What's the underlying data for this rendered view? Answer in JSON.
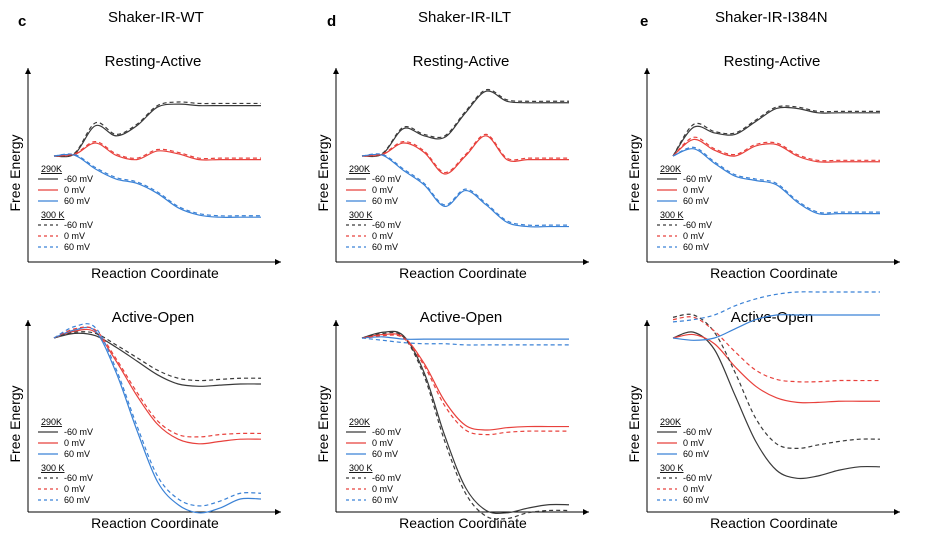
{
  "columns": [
    {
      "letter": "c",
      "title": "Shaker-IR-WT"
    },
    {
      "letter": "d",
      "title": "Shaker-IR-ILT"
    },
    {
      "letter": "e",
      "title": "Shaker-IR-I384N"
    }
  ],
  "legend": {
    "group_290": "290K",
    "group_300": "300 K",
    "labels": [
      "-60 mV",
      "0 mV",
      "60 mV"
    ]
  },
  "colors": {
    "-60 mV": "#3a3a3a",
    "0 mV": "#e8413c",
    "60 mV": "#3b82d6"
  },
  "chart_data": [
    {
      "type": "line",
      "panel": "c",
      "title": "Resting-Active",
      "xlabel": "Reaction Coordinate",
      "ylabel": "Free Energy",
      "x": [
        0,
        0.1,
        0.2,
        0.3,
        0.4,
        0.5,
        0.6,
        0.7,
        0.8,
        0.9,
        1.0
      ],
      "series": [
        {
          "name": "-60 mV",
          "temperature": "290K",
          "style": "solid",
          "values": [
            0,
            0.03,
            0.42,
            0.28,
            0.42,
            0.68,
            0.72,
            0.7,
            0.7,
            0.7,
            0.7
          ]
        },
        {
          "name": "0 mV",
          "temperature": "290K",
          "style": "solid",
          "values": [
            0,
            0.02,
            0.18,
            0.01,
            -0.05,
            0.07,
            0.03,
            -0.05,
            -0.05,
            -0.05,
            -0.05
          ]
        },
        {
          "name": "60 mV",
          "temperature": "290K",
          "style": "solid",
          "values": [
            0,
            0.01,
            -0.18,
            -0.32,
            -0.38,
            -0.52,
            -0.72,
            -0.82,
            -0.85,
            -0.85,
            -0.85
          ]
        },
        {
          "name": "-60 mV",
          "temperature": "300 K",
          "style": "dashed",
          "values": [
            0,
            0.04,
            0.46,
            0.3,
            0.44,
            0.7,
            0.75,
            0.73,
            0.73,
            0.73,
            0.73
          ]
        },
        {
          "name": "0 mV",
          "temperature": "300 K",
          "style": "dashed",
          "values": [
            0,
            0.03,
            0.2,
            0.03,
            -0.03,
            0.09,
            0.05,
            -0.03,
            -0.03,
            -0.03,
            -0.03
          ]
        },
        {
          "name": "60 mV",
          "temperature": "300 K",
          "style": "dashed",
          "values": [
            0,
            0.02,
            -0.16,
            -0.3,
            -0.36,
            -0.5,
            -0.7,
            -0.8,
            -0.83,
            -0.83,
            -0.83
          ]
        }
      ]
    },
    {
      "type": "line",
      "panel": "d",
      "title": "Resting-Active",
      "xlabel": "Reaction Coordinate",
      "ylabel": "Free Energy",
      "x": [
        0,
        0.1,
        0.2,
        0.3,
        0.4,
        0.5,
        0.6,
        0.7,
        0.8,
        0.9,
        1.0
      ],
      "series": [
        {
          "name": "-60 mV",
          "temperature": "290K",
          "style": "solid",
          "values": [
            0,
            0.03,
            0.38,
            0.28,
            0.26,
            0.6,
            0.9,
            0.76,
            0.74,
            0.74,
            0.74
          ]
        },
        {
          "name": "0 mV",
          "temperature": "290K",
          "style": "solid",
          "values": [
            0,
            0.02,
            0.18,
            0.05,
            -0.25,
            0.0,
            0.28,
            -0.05,
            -0.05,
            -0.05,
            -0.05
          ]
        },
        {
          "name": "60 mV",
          "temperature": "290K",
          "style": "solid",
          "values": [
            0,
            0.01,
            -0.2,
            -0.4,
            -0.7,
            -0.48,
            -0.68,
            -0.92,
            -0.98,
            -0.98,
            -0.98
          ]
        },
        {
          "name": "-60 mV",
          "temperature": "300 K",
          "style": "dashed",
          "values": [
            0,
            0.04,
            0.4,
            0.3,
            0.28,
            0.62,
            0.92,
            0.78,
            0.76,
            0.76,
            0.76
          ]
        },
        {
          "name": "0 mV",
          "temperature": "300 K",
          "style": "dashed",
          "values": [
            0,
            0.03,
            0.2,
            0.07,
            -0.23,
            0.02,
            0.3,
            -0.03,
            -0.03,
            -0.03,
            -0.03
          ]
        },
        {
          "name": "60 mV",
          "temperature": "300 K",
          "style": "dashed",
          "values": [
            0,
            0.02,
            -0.18,
            -0.38,
            -0.68,
            -0.46,
            -0.66,
            -0.9,
            -0.96,
            -0.96,
            -0.96
          ]
        }
      ]
    },
    {
      "type": "line",
      "panel": "e",
      "title": "Resting-Active",
      "xlabel": "Reaction Coordinate",
      "ylabel": "Free Energy",
      "x": [
        0,
        0.1,
        0.2,
        0.3,
        0.4,
        0.5,
        0.6,
        0.7,
        0.8,
        0.9,
        1.0
      ],
      "series": [
        {
          "name": "-60 mV",
          "temperature": "290K",
          "style": "solid",
          "values": [
            0,
            0.4,
            0.32,
            0.3,
            0.48,
            0.66,
            0.66,
            0.6,
            0.6,
            0.6,
            0.6
          ]
        },
        {
          "name": "0 mV",
          "temperature": "290K",
          "style": "solid",
          "values": [
            0,
            0.23,
            0.08,
            0.0,
            0.14,
            0.16,
            0.0,
            -0.08,
            -0.08,
            -0.08,
            -0.08
          ]
        },
        {
          "name": "60 mV",
          "temperature": "290K",
          "style": "solid",
          "values": [
            0,
            0.1,
            -0.1,
            -0.28,
            -0.34,
            -0.4,
            -0.64,
            -0.8,
            -0.8,
            -0.8,
            -0.8
          ]
        },
        {
          "name": "-60 mV",
          "temperature": "300 K",
          "style": "dashed",
          "values": [
            0,
            0.44,
            0.34,
            0.32,
            0.5,
            0.68,
            0.68,
            0.62,
            0.62,
            0.62,
            0.62
          ]
        },
        {
          "name": "0 mV",
          "temperature": "300 K",
          "style": "dashed",
          "values": [
            0,
            0.26,
            0.1,
            0.02,
            0.16,
            0.18,
            0.02,
            -0.06,
            -0.06,
            -0.06,
            -0.06
          ]
        },
        {
          "name": "60 mV",
          "temperature": "300 K",
          "style": "dashed",
          "values": [
            0,
            0.12,
            -0.08,
            -0.26,
            -0.32,
            -0.38,
            -0.62,
            -0.78,
            -0.78,
            -0.78,
            -0.78
          ]
        }
      ]
    },
    {
      "type": "line",
      "panel": "c",
      "title": "Active-Open",
      "xlabel": "Reaction Coordinate",
      "ylabel": "Free Energy",
      "x": [
        0,
        0.1,
        0.2,
        0.3,
        0.4,
        0.5,
        0.6,
        0.7,
        0.8,
        0.9,
        1.0
      ],
      "series": [
        {
          "name": "-60 mV",
          "temperature": "290K",
          "style": "solid",
          "values": [
            0,
            0.04,
            0.02,
            -0.08,
            -0.2,
            -0.32,
            -0.4,
            -0.42,
            -0.41,
            -0.4,
            -0.4
          ]
        },
        {
          "name": "0 mV",
          "temperature": "290K",
          "style": "solid",
          "values": [
            0,
            0.06,
            0.05,
            -0.2,
            -0.5,
            -0.75,
            -0.88,
            -0.92,
            -0.9,
            -0.88,
            -0.88
          ]
        },
        {
          "name": "60 mV",
          "temperature": "290K",
          "style": "solid",
          "values": [
            0,
            0.07,
            0.06,
            -0.3,
            -0.8,
            -1.25,
            -1.45,
            -1.52,
            -1.48,
            -1.4,
            -1.4
          ]
        },
        {
          "name": "-60 mV",
          "temperature": "300 K",
          "style": "dashed",
          "values": [
            0,
            0.05,
            0.04,
            -0.06,
            -0.17,
            -0.28,
            -0.35,
            -0.37,
            -0.36,
            -0.35,
            -0.35
          ]
        },
        {
          "name": "0 mV",
          "temperature": "300 K",
          "style": "dashed",
          "values": [
            0,
            0.08,
            0.07,
            -0.18,
            -0.47,
            -0.72,
            -0.84,
            -0.86,
            -0.84,
            -0.83,
            -0.83
          ]
        },
        {
          "name": "60 mV",
          "temperature": "300 K",
          "style": "dashed",
          "values": [
            0,
            0.1,
            0.09,
            -0.27,
            -0.76,
            -1.2,
            -1.4,
            -1.46,
            -1.42,
            -1.35,
            -1.35
          ]
        }
      ]
    },
    {
      "type": "line",
      "panel": "d",
      "title": "Active-Open",
      "xlabel": "Reaction Coordinate",
      "ylabel": "Free Energy",
      "x": [
        0,
        0.1,
        0.2,
        0.3,
        0.4,
        0.5,
        0.6,
        0.7,
        0.8,
        0.9,
        1.0
      ],
      "series": [
        {
          "name": "-60 mV",
          "temperature": "290K",
          "style": "solid",
          "values": [
            0,
            0.05,
            0.02,
            -0.3,
            -0.85,
            -1.3,
            -1.5,
            -1.52,
            -1.48,
            -1.45,
            -1.45
          ]
        },
        {
          "name": "0 mV",
          "temperature": "290K",
          "style": "solid",
          "values": [
            0,
            0.03,
            0.01,
            -0.22,
            -0.55,
            -0.76,
            -0.8,
            -0.78,
            -0.77,
            -0.77,
            -0.77
          ]
        },
        {
          "name": "60 mV",
          "temperature": "290K",
          "style": "solid",
          "values": [
            0,
            0.01,
            -0.01,
            -0.01,
            -0.01,
            -0.01,
            -0.01,
            -0.01,
            -0.01,
            -0.01,
            -0.01
          ]
        },
        {
          "name": "-60 mV",
          "temperature": "300 K",
          "style": "dashed",
          "values": [
            0,
            0.04,
            0.01,
            -0.33,
            -0.9,
            -1.35,
            -1.55,
            -1.57,
            -1.52,
            -1.5,
            -1.5
          ]
        },
        {
          "name": "0 mV",
          "temperature": "300 K",
          "style": "dashed",
          "values": [
            0,
            0.02,
            0.0,
            -0.24,
            -0.59,
            -0.8,
            -0.84,
            -0.82,
            -0.81,
            -0.81,
            -0.81
          ]
        },
        {
          "name": "60 mV",
          "temperature": "300 K",
          "style": "dashed",
          "values": [
            0,
            -0.02,
            -0.04,
            -0.05,
            -0.05,
            -0.06,
            -0.06,
            -0.06,
            -0.06,
            -0.06,
            -0.06
          ]
        }
      ]
    },
    {
      "type": "line",
      "panel": "e",
      "title": "Active-Open",
      "xlabel": "Reaction Coordinate",
      "ylabel": "Free Energy",
      "x": [
        0,
        0.1,
        0.2,
        0.3,
        0.4,
        0.5,
        0.6,
        0.7,
        0.8,
        0.9,
        1.0
      ],
      "series": [
        {
          "name": "-60 mV",
          "temperature": "290K",
          "style": "solid",
          "values": [
            0,
            0.05,
            -0.1,
            -0.5,
            -0.9,
            -1.15,
            -1.22,
            -1.2,
            -1.15,
            -1.12,
            -1.12
          ]
        },
        {
          "name": "0 mV",
          "temperature": "290K",
          "style": "solid",
          "values": [
            0,
            0.03,
            -0.05,
            -0.25,
            -0.42,
            -0.52,
            -0.56,
            -0.56,
            -0.55,
            -0.55,
            -0.55
          ]
        },
        {
          "name": "60 mV",
          "temperature": "290K",
          "style": "solid",
          "values": [
            0,
            -0.02,
            0.0,
            0.08,
            0.16,
            0.2,
            0.2,
            0.2,
            0.2,
            0.2,
            0.2
          ]
        },
        {
          "name": "-60 mV",
          "temperature": "300 K",
          "style": "dashed",
          "values": [
            0.18,
            0.2,
            0.05,
            -0.3,
            -0.7,
            -0.92,
            -0.96,
            -0.93,
            -0.9,
            -0.88,
            -0.88
          ]
        },
        {
          "name": "0 mV",
          "temperature": "300 K",
          "style": "dashed",
          "values": [
            0.16,
            0.18,
            0.06,
            -0.12,
            -0.28,
            -0.36,
            -0.38,
            -0.38,
            -0.37,
            -0.37,
            -0.37
          ]
        },
        {
          "name": "60 mV",
          "temperature": "300 K",
          "style": "dashed",
          "values": [
            0.14,
            0.16,
            0.2,
            0.28,
            0.34,
            0.38,
            0.4,
            0.4,
            0.4,
            0.4,
            0.4
          ]
        }
      ]
    }
  ]
}
